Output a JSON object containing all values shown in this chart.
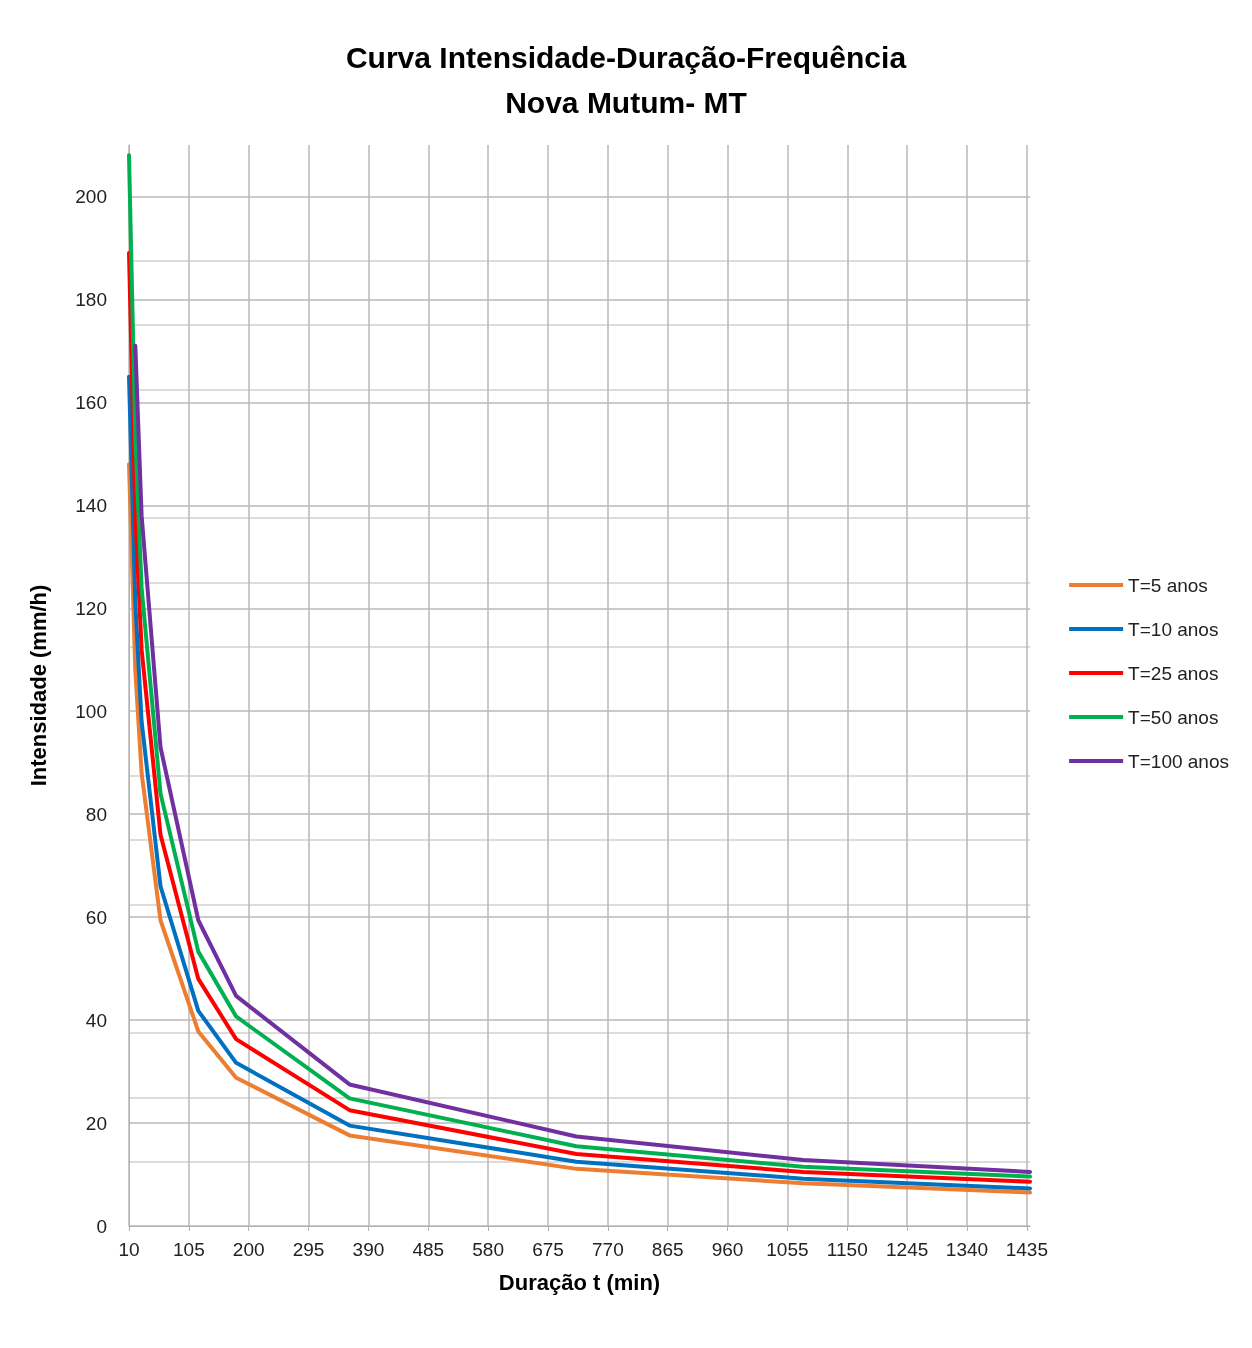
{
  "chart_data": {
    "type": "line",
    "title": "Curva Intensidade-Duração-Frequência\nNova Mutum- MT",
    "xlabel": "Duração t (min)",
    "ylabel": "Intensidade (mm/h)",
    "x": [
      10,
      20,
      30,
      60,
      120,
      180,
      360,
      720,
      1080,
      1440
    ],
    "xlim": [
      10,
      1440
    ],
    "xticks": [
      10,
      105,
      200,
      295,
      390,
      485,
      580,
      675,
      770,
      865,
      960,
      1055,
      1150,
      1245,
      1340,
      1435
    ],
    "ylim": [
      0,
      210
    ],
    "yticks": [
      0,
      20,
      40,
      60,
      80,
      100,
      120,
      140,
      160,
      180,
      200
    ],
    "grid": true,
    "legend": "right",
    "marker": "none",
    "line_style": "solid",
    "series": [
      {
        "name": "T=5 anos",
        "color": "#ed7d31",
        "values": [
          148,
          108,
          88,
          59.4,
          37.8,
          28.8,
          17.6,
          11.1,
          8.3,
          6.5
        ]
      },
      {
        "name": "T=10 anos",
        "color": "#0070c0",
        "values": [
          165,
          121,
          98,
          66,
          41.8,
          31.7,
          19.5,
          12.5,
          9.2,
          7.3
        ]
      },
      {
        "name": "T=25 anos",
        "color": "#ff0000",
        "values": [
          189,
          138,
          112,
          76,
          48,
          36.3,
          22.5,
          14.0,
          10.5,
          8.6
        ]
      },
      {
        "name": "T=50 anos",
        "color": "#00b050",
        "values": [
          208,
          153,
          124,
          84,
          53.3,
          40.7,
          24.8,
          15.5,
          11.5,
          9.6
        ]
      },
      {
        "name": "T=100 anos",
        "color": "#7030a0",
        "values": [
          null,
          171,
          138,
          93,
          59.4,
          44.7,
          27.5,
          17.4,
          12.8,
          10.5
        ]
      }
    ]
  }
}
